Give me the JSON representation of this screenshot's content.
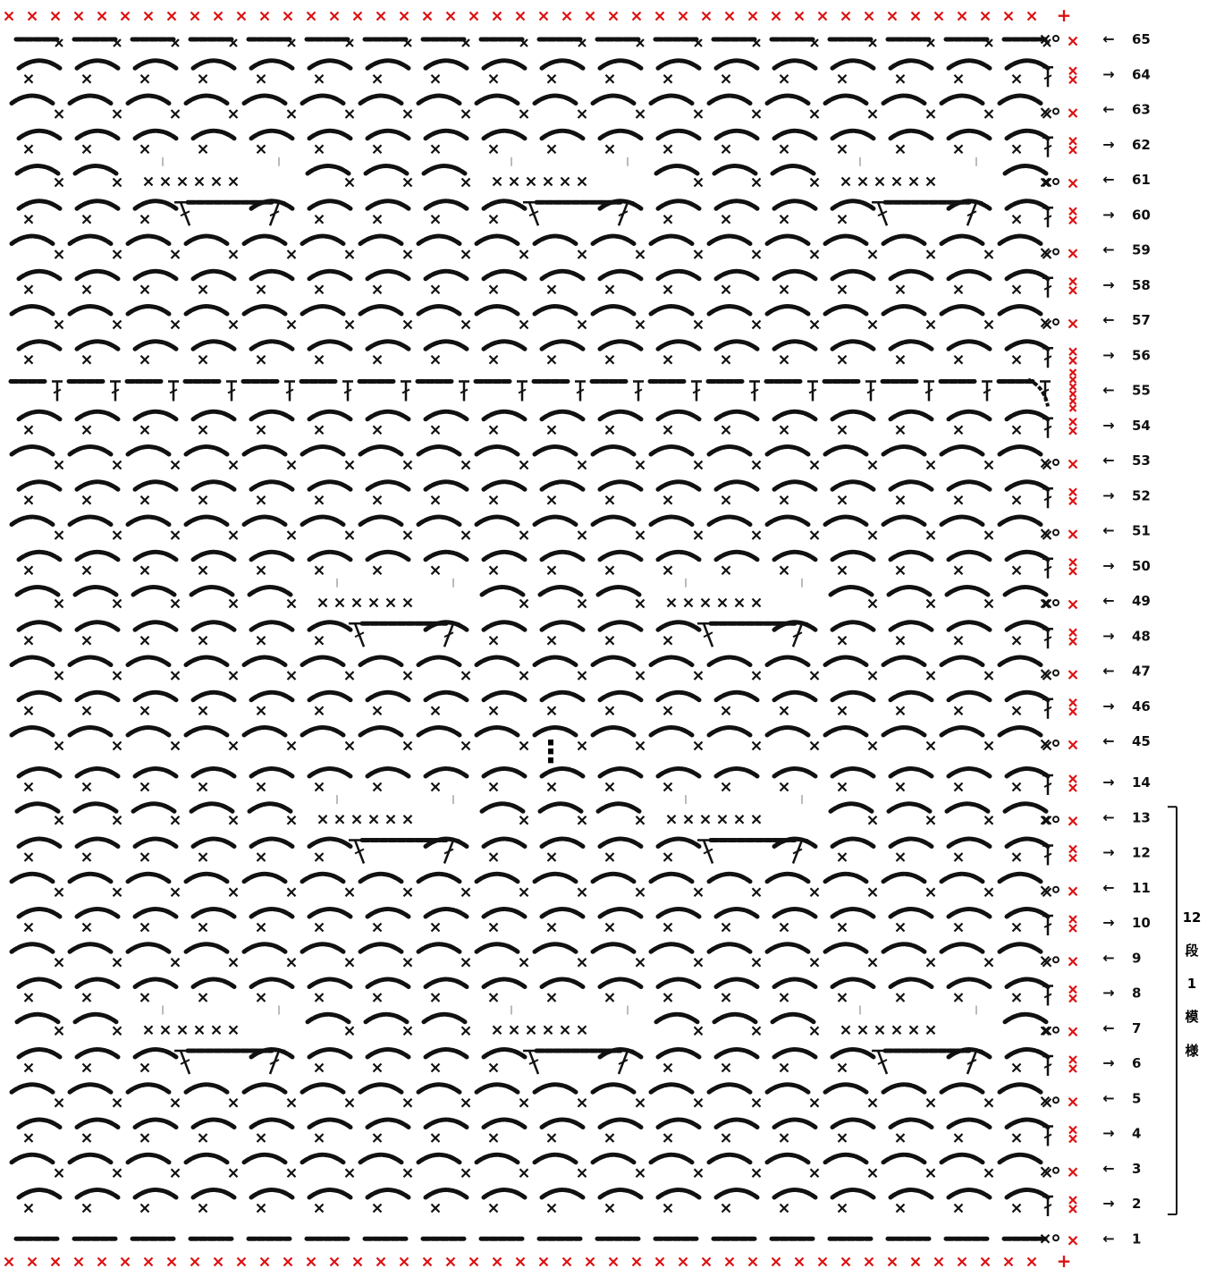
{
  "diagram": {
    "title": "",
    "top_rows": [
      65,
      64,
      63,
      62,
      61,
      60,
      59,
      58,
      57,
      56,
      55,
      54,
      53,
      52,
      51,
      50,
      49,
      48,
      47,
      46,
      45
    ],
    "bottom_rows": [
      14,
      13,
      12,
      11,
      10,
      9,
      8,
      7,
      6,
      5,
      4,
      3,
      2,
      1
    ],
    "odd_arrow": "←",
    "even_arrow": "→",
    "repeat_label_lines": [
      "12",
      "段",
      "1",
      "模",
      "様"
    ],
    "repeat_from_row": 13,
    "repeat_to_row": 2,
    "colors": {
      "stitch": "#111111",
      "edge": "#dd1111",
      "guide": "#bbbbbb",
      "background": "#ffffff"
    },
    "symbols": {
      "single_crochet": "x",
      "edge_single_crochet": "x",
      "turning_chain": "0",
      "chain_arch": "chain-arch",
      "double_crochet": "T",
      "corner_mark": "+"
    },
    "continuation_mark": "⋮"
  }
}
